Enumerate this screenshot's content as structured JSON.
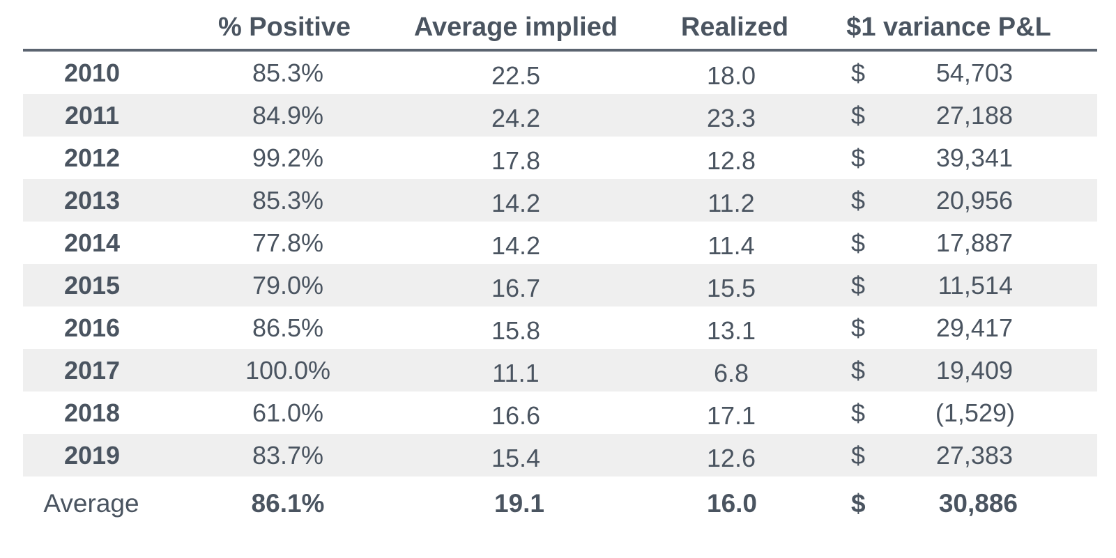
{
  "chart_data": {
    "type": "table",
    "columns": [
      "",
      "% Positive",
      "Average implied",
      "Realized",
      "$1 variance P&L"
    ],
    "rows": [
      {
        "year": "2010",
        "pct_positive": "85.3%",
        "avg_implied": "22.5",
        "realized": "18.0",
        "currency": "$",
        "pnl": "54,703"
      },
      {
        "year": "2011",
        "pct_positive": "84.9%",
        "avg_implied": "24.2",
        "realized": "23.3",
        "currency": "$",
        "pnl": "27,188"
      },
      {
        "year": "2012",
        "pct_positive": "99.2%",
        "avg_implied": "17.8",
        "realized": "12.8",
        "currency": "$",
        "pnl": "39,341"
      },
      {
        "year": "2013",
        "pct_positive": "85.3%",
        "avg_implied": "14.2",
        "realized": "11.2",
        "currency": "$",
        "pnl": "20,956"
      },
      {
        "year": "2014",
        "pct_positive": "77.8%",
        "avg_implied": "14.2",
        "realized": "11.4",
        "currency": "$",
        "pnl": "17,887"
      },
      {
        "year": "2015",
        "pct_positive": "79.0%",
        "avg_implied": "16.7",
        "realized": "15.5",
        "currency": "$",
        "pnl": "11,514"
      },
      {
        "year": "2016",
        "pct_positive": "86.5%",
        "avg_implied": "15.8",
        "realized": "13.1",
        "currency": "$",
        "pnl": "29,417"
      },
      {
        "year": "2017",
        "pct_positive": "100.0%",
        "avg_implied": "11.1",
        "realized": "6.8",
        "currency": "$",
        "pnl": "19,409"
      },
      {
        "year": "2018",
        "pct_positive": "61.0%",
        "avg_implied": "16.6",
        "realized": "17.1",
        "currency": "$",
        "pnl": "(1,529)"
      },
      {
        "year": "2019",
        "pct_positive": "83.7%",
        "avg_implied": "15.4",
        "realized": "12.6",
        "currency": "$",
        "pnl": "27,383"
      }
    ],
    "average": {
      "label": "Average",
      "pct_positive": "86.1%",
      "avg_implied": "19.1",
      "realized": "16.0",
      "currency": "$",
      "pnl": "30,886"
    },
    "row_shading": "alternating",
    "shade_color": "#efefef",
    "text_color": "#4a5460",
    "rule_color": "#5b6470"
  }
}
